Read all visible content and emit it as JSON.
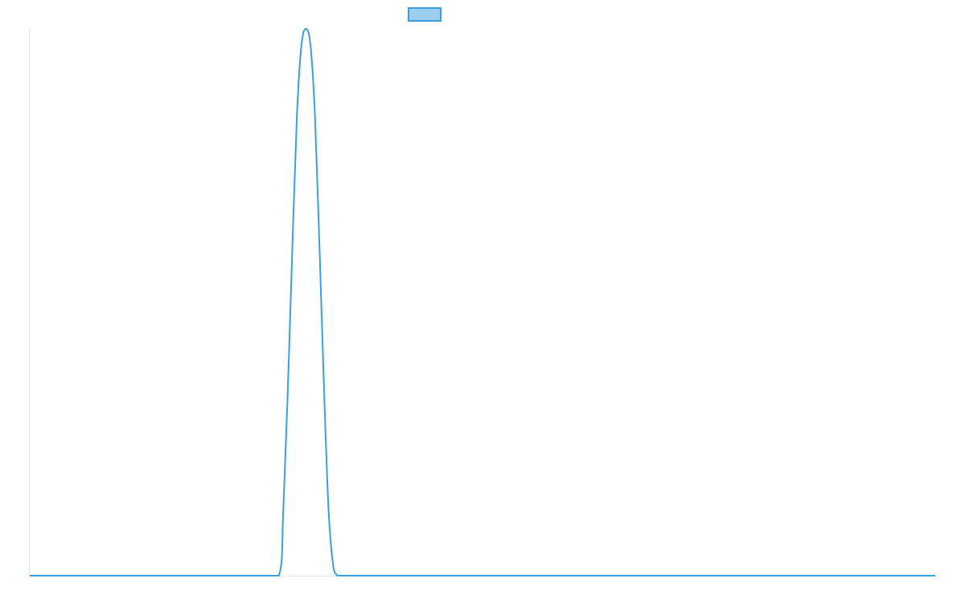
{
  "chart_data": {
    "type": "line",
    "title": "",
    "xlabel": "",
    "ylabel": "",
    "legend": {
      "placement": "top-center",
      "entries": [
        {
          "name": "",
          "fill_color": "#9ccff2",
          "border_color": "#3a9fde"
        }
      ]
    },
    "grid": false,
    "xlim": [
      0,
      100
    ],
    "ylim": [
      0,
      1
    ],
    "series": [
      {
        "line_color": "#3a9fde",
        "x": [
          0,
          5,
          10,
          15,
          20,
          25,
          27.5,
          28,
          28.5,
          29,
          29.5,
          30,
          30.5,
          31,
          31.5,
          32,
          32.5,
          33,
          33.5,
          34,
          34.5,
          35,
          40,
          45,
          50,
          55,
          60,
          65,
          70,
          75,
          80,
          85,
          90,
          95,
          100
        ],
        "y": [
          0,
          0,
          0,
          0,
          0,
          0,
          0,
          0.12,
          0.34,
          0.6,
          0.84,
          0.97,
          1.0,
          0.97,
          0.84,
          0.6,
          0.34,
          0.12,
          0.02,
          0,
          0,
          0,
          0,
          0,
          0,
          0,
          0,
          0,
          0,
          0,
          0,
          0,
          0,
          0,
          0
        ]
      }
    ]
  }
}
